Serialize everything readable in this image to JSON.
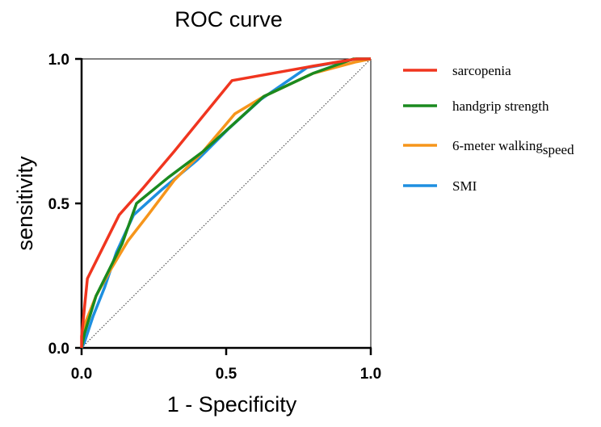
{
  "chart_data": {
    "type": "line",
    "title": "ROC curve",
    "xlabel": "1 - Specificity",
    "ylabel": "sensitivity",
    "xlim": [
      0,
      1
    ],
    "ylim": [
      0,
      1
    ],
    "x_ticks": [
      "0.0",
      "0.5",
      "1.0"
    ],
    "y_ticks": [
      "0.0",
      "0.5",
      "1.0"
    ],
    "grid": false,
    "legend_position": "right",
    "reference_line": {
      "x": [
        0,
        1
      ],
      "y": [
        0,
        1
      ],
      "style": "dotted"
    },
    "series": [
      {
        "name": "sarcopenia",
        "color": "#f0351f",
        "x": [
          0,
          0.0,
          0.02,
          0.13,
          0.21,
          0.32,
          0.52,
          0.8,
          0.95,
          1.0
        ],
        "y": [
          0,
          0.04,
          0.24,
          0.46,
          0.55,
          0.68,
          0.925,
          0.975,
          1.0,
          1.0
        ]
      },
      {
        "name": "handgrip strength",
        "color": "#1a8a1f",
        "x": [
          0,
          0.01,
          0.05,
          0.1,
          0.14,
          0.19,
          0.3,
          0.42,
          0.52,
          0.63,
          0.8,
          0.94,
          1.0
        ],
        "y": [
          0,
          0.05,
          0.18,
          0.28,
          0.36,
          0.5,
          0.59,
          0.68,
          0.77,
          0.87,
          0.95,
          1.0,
          1.0
        ]
      },
      {
        "name": "6-meter walkingspeed",
        "color": "#f6951b",
        "x": [
          0,
          0.01,
          0.05,
          0.1,
          0.16,
          0.23,
          0.32,
          0.42,
          0.53,
          0.63,
          0.8,
          0.95,
          1.0
        ],
        "y": [
          0,
          0.08,
          0.18,
          0.27,
          0.37,
          0.46,
          0.58,
          0.68,
          0.81,
          0.87,
          0.95,
          0.99,
          1.0
        ]
      },
      {
        "name": "SMI",
        "color": "#1e8fe0",
        "x": [
          0,
          0.01,
          0.04,
          0.08,
          0.12,
          0.18,
          0.28,
          0.4,
          0.51,
          0.62,
          0.78,
          0.95,
          1.0
        ],
        "y": [
          0,
          0.02,
          0.11,
          0.21,
          0.33,
          0.46,
          0.55,
          0.65,
          0.76,
          0.86,
          0.97,
          1.0,
          1.0
        ]
      }
    ],
    "legend_labels": [
      {
        "main": "sarcopenia",
        "suffix": ""
      },
      {
        "main": "handgrip strength",
        "suffix": ""
      },
      {
        "main": "6-meter walking",
        "suffix": "speed"
      },
      {
        "main": "SMI",
        "suffix": ""
      }
    ]
  }
}
